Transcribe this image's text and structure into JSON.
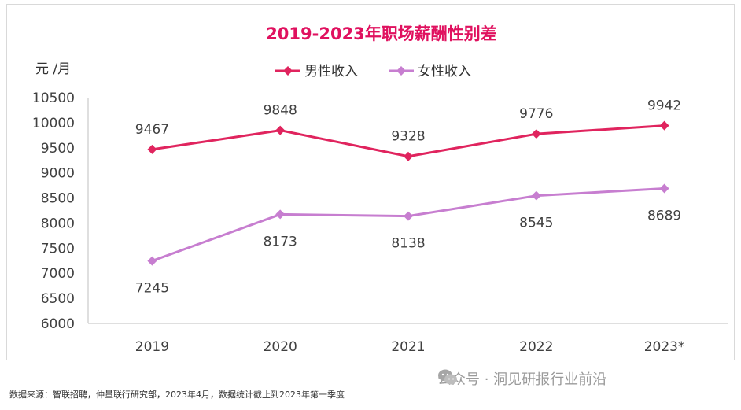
{
  "chart_data": {
    "type": "line",
    "title": "2019-2023年职场薪酬性别差",
    "ylabel": "元 /月",
    "xlabel": "",
    "categories": [
      "2019",
      "2020",
      "2021",
      "2022",
      "2023*"
    ],
    "ylim": [
      6000,
      10500
    ],
    "yticks": [
      6000,
      6500,
      7000,
      7500,
      8000,
      8500,
      9000,
      9500,
      10000,
      10500
    ],
    "legend_position": "top-center",
    "grid": false,
    "series": [
      {
        "name": "男性收入",
        "values": [
          9467,
          9848,
          9328,
          9776,
          9942
        ],
        "color": "#e0245e",
        "label_position": "above"
      },
      {
        "name": "女性收入",
        "values": [
          7245,
          8173,
          8138,
          8545,
          8689
        ],
        "color": "#c77ed0",
        "label_position": "below"
      }
    ]
  },
  "source_note": "数据来源：智联招聘，仲量联行研究部，2023年4月，数据统计截止到2023年第一季度",
  "watermark": "公众号 · 洞见研报行业前沿"
}
